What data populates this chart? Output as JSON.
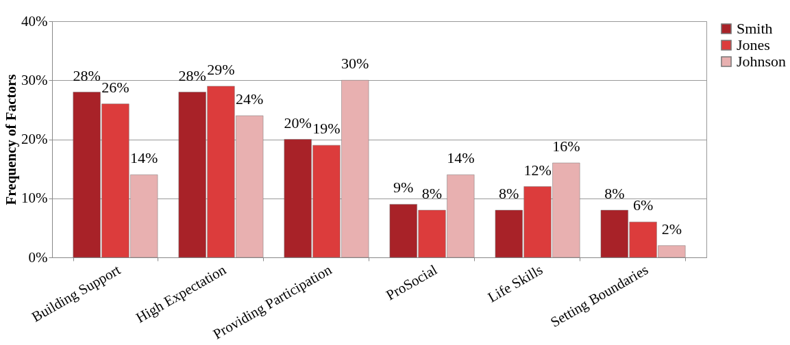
{
  "chart_data": {
    "type": "bar",
    "ylabel": "Frequency of Factors",
    "categories": [
      "Building Support",
      "High Expectation",
      "Providing Participation",
      "ProSocial",
      "Life Skills",
      "Setting Boundaries"
    ],
    "series": [
      {
        "name": "Smith",
        "color": "#a82228",
        "values": [
          28,
          28,
          20,
          9,
          8,
          8
        ],
        "value_labels": [
          "28%",
          "28%",
          "20%",
          "9%",
          "8%",
          "8%"
        ]
      },
      {
        "name": "Jones",
        "color": "#dc3c3c",
        "values": [
          26,
          29,
          19,
          8,
          12,
          6
        ],
        "value_labels": [
          "26%",
          "29%",
          "19%",
          "8%",
          "12%",
          "6%"
        ]
      },
      {
        "name": "Johnson",
        "color": "#e8b0b0",
        "values": [
          14,
          24,
          30,
          14,
          16,
          2
        ],
        "value_labels": [
          "14%",
          "24%",
          "30%",
          "14%",
          "16%",
          "2%"
        ]
      }
    ],
    "ylim": [
      0,
      40
    ],
    "yticks": [
      {
        "value": 0,
        "label": "0%"
      },
      {
        "value": 10,
        "label": "10%"
      },
      {
        "value": 20,
        "label": "20%"
      },
      {
        "value": 30,
        "label": "30%"
      },
      {
        "value": 40,
        "label": "40%"
      }
    ],
    "grid": "y",
    "legend": "right"
  }
}
